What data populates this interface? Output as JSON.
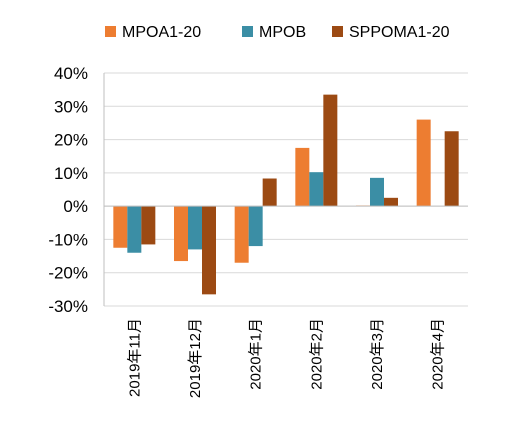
{
  "chart_data": {
    "type": "bar",
    "categories": [
      "2019年11月",
      "2019年12月",
      "2020年1月",
      "2020年2月",
      "2020年3月",
      "2020年4月"
    ],
    "series": [
      {
        "name": "MPOA1-20",
        "color": "#ED7D31",
        "values": [
          -12.5,
          -16.5,
          -17.0,
          17.5,
          0.2,
          26.0
        ]
      },
      {
        "name": "MPOB",
        "color": "#3B8EA5",
        "values": [
          -14.0,
          -13.0,
          -12.0,
          10.2,
          8.5,
          null
        ]
      },
      {
        "name": "SPPOMA1-20",
        "color": "#9C4A13",
        "values": [
          -11.5,
          -26.5,
          8.3,
          33.5,
          2.5,
          22.5
        ]
      }
    ],
    "y_ticks": [
      "40%",
      "30%",
      "20%",
      "10%",
      "0%",
      "-10%",
      "-20%",
      "-30%"
    ],
    "y_tick_values": [
      40,
      30,
      20,
      10,
      0,
      -10,
      -20,
      -30
    ],
    "ylim": [
      -30,
      40
    ],
    "grid": true,
    "legend_position": "top",
    "title": "",
    "xlabel": "",
    "ylabel": ""
  }
}
